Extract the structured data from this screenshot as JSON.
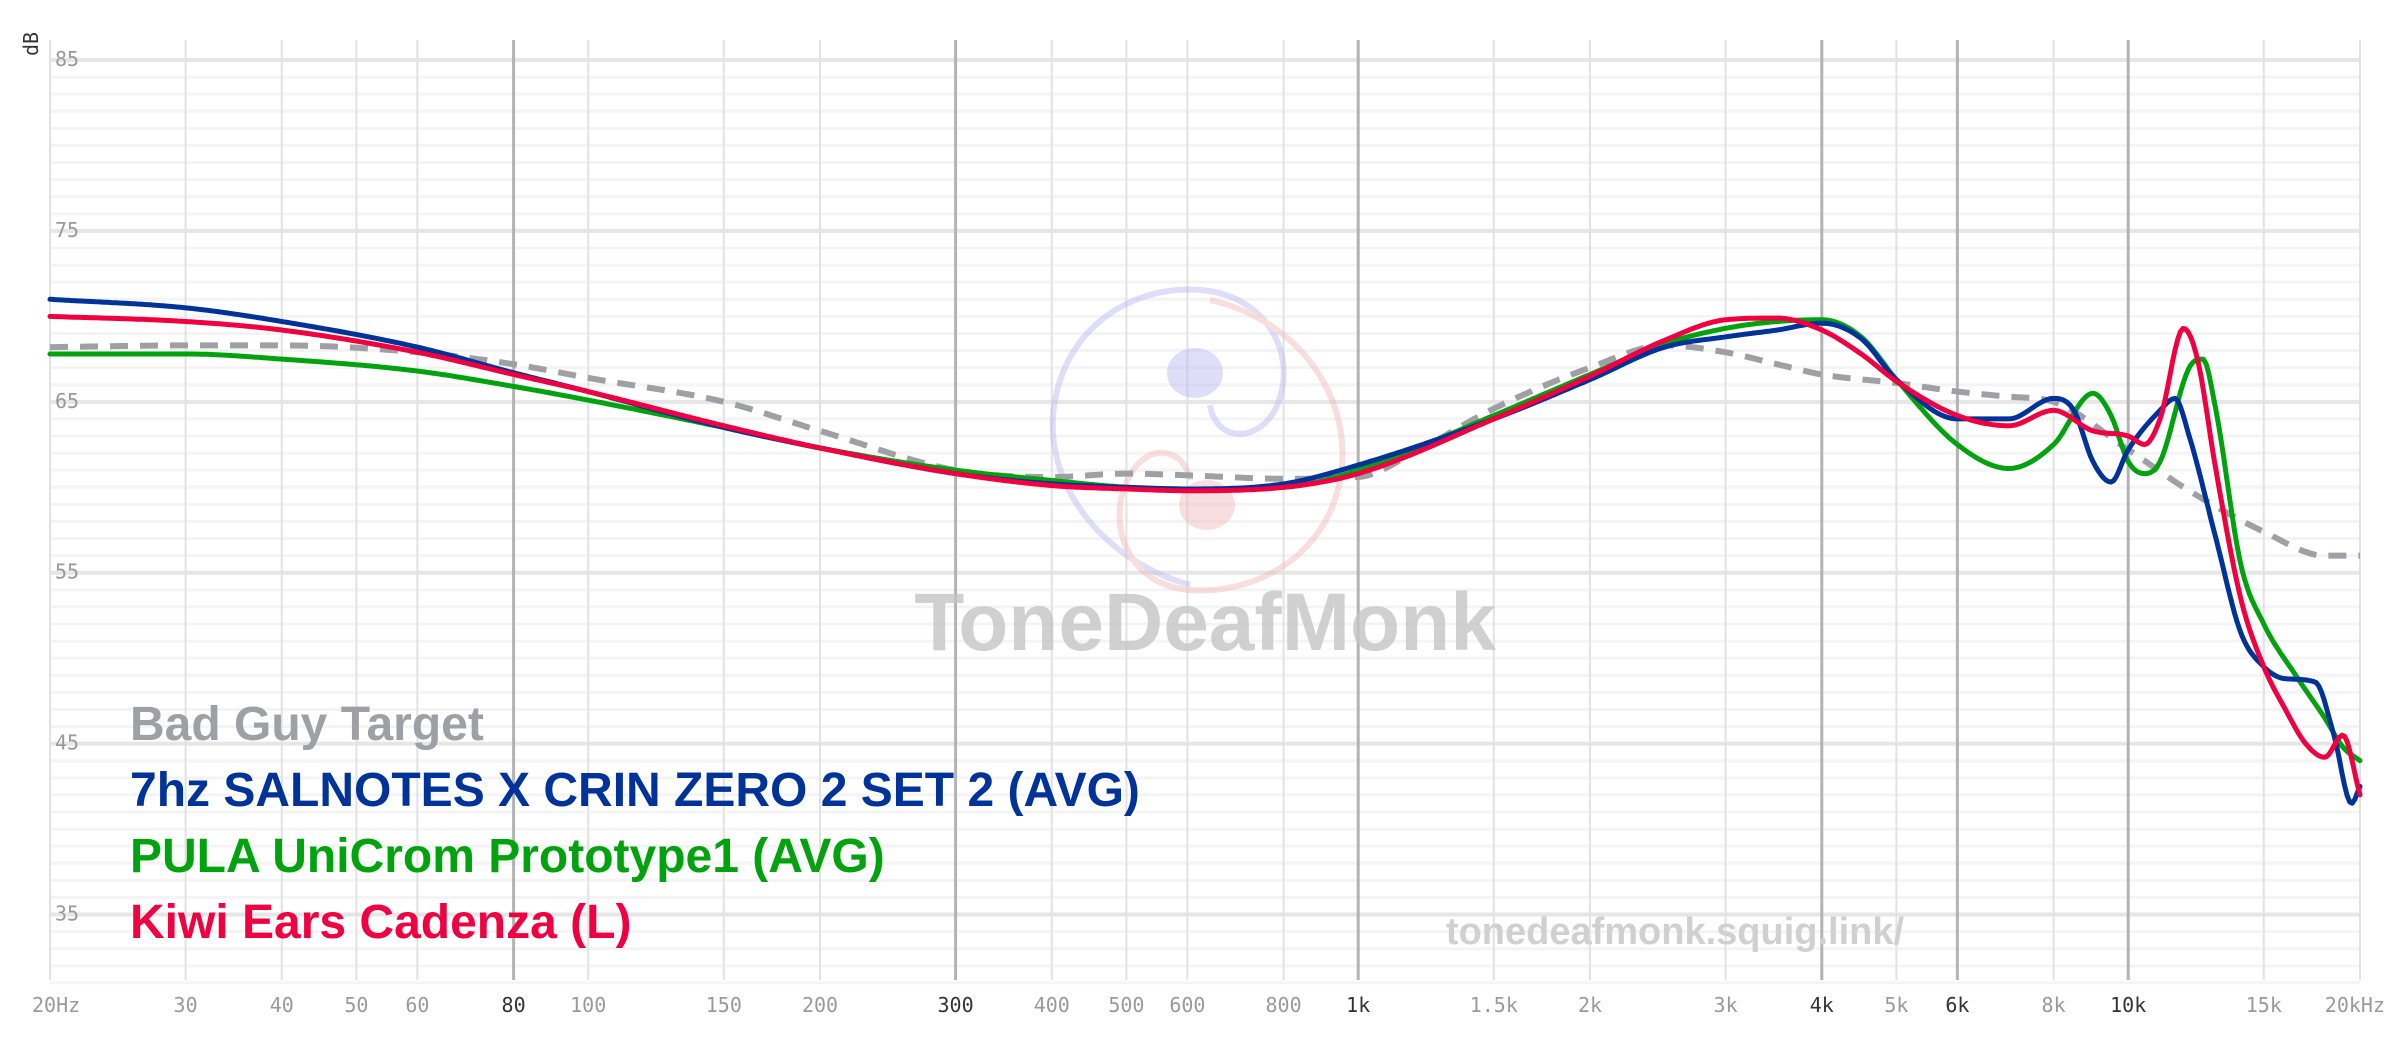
{
  "chart_data": {
    "type": "line",
    "title": "",
    "xlabel": "",
    "ylabel": "dB",
    "x_scale": "log",
    "xlim": [
      20,
      20000
    ],
    "ylim": [
      30,
      85
    ],
    "y_ticks": [
      35,
      45,
      55,
      65,
      75,
      85
    ],
    "x_ticks": [
      {
        "value": 20,
        "label": "20Hz",
        "strong": false
      },
      {
        "value": 30,
        "label": "30",
        "strong": false
      },
      {
        "value": 40,
        "label": "40",
        "strong": false
      },
      {
        "value": 50,
        "label": "50",
        "strong": false
      },
      {
        "value": 60,
        "label": "60",
        "strong": false
      },
      {
        "value": 80,
        "label": "80",
        "strong": true
      },
      {
        "value": 100,
        "label": "100",
        "strong": false
      },
      {
        "value": 150,
        "label": "150",
        "strong": false
      },
      {
        "value": 200,
        "label": "200",
        "strong": false
      },
      {
        "value": 300,
        "label": "300",
        "strong": true
      },
      {
        "value": 400,
        "label": "400",
        "strong": false
      },
      {
        "value": 500,
        "label": "500",
        "strong": false
      },
      {
        "value": 600,
        "label": "600",
        "strong": false
      },
      {
        "value": 800,
        "label": "800",
        "strong": false
      },
      {
        "value": 1000,
        "label": "1k",
        "strong": true
      },
      {
        "value": 1500,
        "label": "1.5k",
        "strong": false
      },
      {
        "value": 2000,
        "label": "2k",
        "strong": false
      },
      {
        "value": 3000,
        "label": "3k",
        "strong": false
      },
      {
        "value": 4000,
        "label": "4k",
        "strong": true
      },
      {
        "value": 5000,
        "label": "5k",
        "strong": false
      },
      {
        "value": 6000,
        "label": "6k",
        "strong": true
      },
      {
        "value": 8000,
        "label": "8k",
        "strong": false
      },
      {
        "value": 10000,
        "label": "10k",
        "strong": true
      },
      {
        "value": 15000,
        "label": "15k",
        "strong": false
      },
      {
        "value": 20000,
        "label": "20kHz",
        "strong": false
      }
    ],
    "grid": true,
    "legend_position": "bottom-left",
    "series": [
      {
        "name": "Bad Guy Target",
        "color": "#9ea0a6",
        "dashed": true,
        "points": [
          [
            20,
            68.2
          ],
          [
            30,
            68.3
          ],
          [
            40,
            68.3
          ],
          [
            60,
            67.9
          ],
          [
            80,
            67.2
          ],
          [
            100,
            66.4
          ],
          [
            150,
            65
          ],
          [
            200,
            63.3
          ],
          [
            300,
            61
          ],
          [
            400,
            60.6
          ],
          [
            500,
            60.8
          ],
          [
            600,
            60.7
          ],
          [
            800,
            60.5
          ],
          [
            1000,
            60.6
          ],
          [
            1200,
            62.2
          ],
          [
            1500,
            64.6
          ],
          [
            2000,
            67
          ],
          [
            2500,
            68.3
          ],
          [
            3000,
            67.9
          ],
          [
            3500,
            67.2
          ],
          [
            4000,
            66.6
          ],
          [
            5000,
            66.1
          ],
          [
            6000,
            65.6
          ],
          [
            7000,
            65.3
          ],
          [
            8000,
            65
          ],
          [
            10000,
            62.2
          ],
          [
            12000,
            59.8
          ],
          [
            15000,
            57.4
          ],
          [
            18000,
            56
          ],
          [
            20000,
            56
          ]
        ]
      },
      {
        "name": "7hz SALNOTES X CRIN ZERO 2 SET 2 (AVG)",
        "color": "#003399",
        "dashed": false,
        "points": [
          [
            20,
            71
          ],
          [
            30,
            70.5
          ],
          [
            40,
            69.7
          ],
          [
            60,
            68.2
          ],
          [
            80,
            66.7
          ],
          [
            100,
            65.6
          ],
          [
            150,
            63.5
          ],
          [
            200,
            62.3
          ],
          [
            300,
            60.8
          ],
          [
            400,
            60.2
          ],
          [
            500,
            60
          ],
          [
            600,
            59.9
          ],
          [
            800,
            60.2
          ],
          [
            1000,
            61.3
          ],
          [
            1500,
            64
          ],
          [
            2000,
            66.3
          ],
          [
            2500,
            68.2
          ],
          [
            3000,
            68.8
          ],
          [
            3500,
            69.2
          ],
          [
            4000,
            69.6
          ],
          [
            4500,
            68.7
          ],
          [
            5000,
            66.3
          ],
          [
            6000,
            64
          ],
          [
            7000,
            64
          ],
          [
            8000,
            65.2
          ],
          [
            8500,
            64.5
          ],
          [
            9000,
            61.5
          ],
          [
            9500,
            60.3
          ],
          [
            10000,
            62.2
          ],
          [
            11000,
            64.5
          ],
          [
            11500,
            65.2
          ],
          [
            12000,
            63
          ],
          [
            13000,
            57
          ],
          [
            14000,
            51.5
          ],
          [
            15000,
            49.5
          ],
          [
            16000,
            48.8
          ],
          [
            17500,
            48.6
          ],
          [
            18500,
            45.5
          ],
          [
            19500,
            41.5
          ],
          [
            20000,
            42.5
          ]
        ]
      },
      {
        "name": "PULA UniCrom Prototype1 (AVG)",
        "color": "#00a30e",
        "dashed": false,
        "points": [
          [
            20,
            67.8
          ],
          [
            30,
            67.8
          ],
          [
            40,
            67.5
          ],
          [
            60,
            66.8
          ],
          [
            80,
            65.9
          ],
          [
            100,
            65.1
          ],
          [
            150,
            63.5
          ],
          [
            200,
            62.3
          ],
          [
            300,
            61
          ],
          [
            400,
            60.4
          ],
          [
            500,
            60
          ],
          [
            600,
            59.9
          ],
          [
            800,
            60
          ],
          [
            1000,
            61
          ],
          [
            1500,
            64.2
          ],
          [
            2000,
            66.6
          ],
          [
            2500,
            68.4
          ],
          [
            3000,
            69.3
          ],
          [
            3500,
            69.7
          ],
          [
            4000,
            69.8
          ],
          [
            4500,
            68.8
          ],
          [
            5000,
            66.3
          ],
          [
            6000,
            62.5
          ],
          [
            7000,
            61.1
          ],
          [
            8000,
            62.5
          ],
          [
            9000,
            65.5
          ],
          [
            9500,
            64.2
          ],
          [
            10000,
            61.5
          ],
          [
            10500,
            60.8
          ],
          [
            11000,
            61.5
          ],
          [
            12000,
            67
          ],
          [
            12500,
            67.5
          ],
          [
            13000,
            64.5
          ],
          [
            14000,
            55.5
          ],
          [
            15000,
            52
          ],
          [
            16500,
            49
          ],
          [
            18000,
            46.5
          ],
          [
            19000,
            44.8
          ],
          [
            20000,
            44
          ]
        ]
      },
      {
        "name": "Kiwi Ears Cadenza (L)",
        "color": "#f00040",
        "dashed": false,
        "points": [
          [
            20,
            70
          ],
          [
            30,
            69.7
          ],
          [
            40,
            69.2
          ],
          [
            60,
            67.9
          ],
          [
            80,
            66.6
          ],
          [
            100,
            65.6
          ],
          [
            150,
            63.6
          ],
          [
            200,
            62.3
          ],
          [
            300,
            60.8
          ],
          [
            400,
            60.1
          ],
          [
            500,
            59.9
          ],
          [
            600,
            59.8
          ],
          [
            800,
            60
          ],
          [
            1000,
            60.8
          ],
          [
            1500,
            64
          ],
          [
            2000,
            66.5
          ],
          [
            2500,
            68.6
          ],
          [
            3000,
            69.8
          ],
          [
            3500,
            69.9
          ],
          [
            4000,
            69.2
          ],
          [
            4500,
            67.8
          ],
          [
            5000,
            66.2
          ],
          [
            6000,
            64.2
          ],
          [
            7000,
            63.6
          ],
          [
            8000,
            64.5
          ],
          [
            9000,
            63.3
          ],
          [
            10000,
            63
          ],
          [
            10500,
            62.5
          ],
          [
            11000,
            64
          ],
          [
            11800,
            69.3
          ],
          [
            12300,
            67.5
          ],
          [
            13000,
            61
          ],
          [
            14000,
            53.5
          ],
          [
            15000,
            49.5
          ],
          [
            16000,
            47
          ],
          [
            17000,
            45
          ],
          [
            18000,
            44.2
          ],
          [
            19000,
            45.5
          ],
          [
            20000,
            42
          ]
        ]
      }
    ]
  },
  "watermark": {
    "brand": "ToneDeafMonk",
    "url": "tonedeafmonk.squig.link/"
  }
}
